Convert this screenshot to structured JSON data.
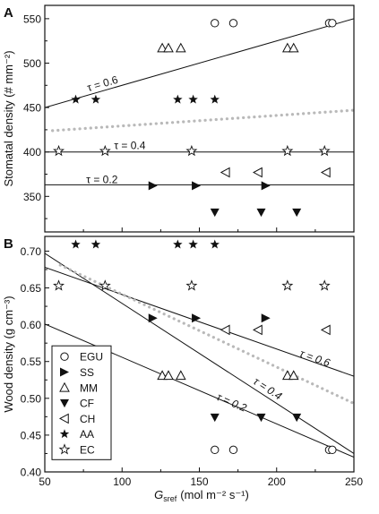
{
  "figure": {
    "x_axis_label": "G",
    "x_axis_subscript": "sref",
    "x_axis_unit": "(mol m⁻² s⁻¹)"
  },
  "chart_data": [
    {
      "panel_letter": "A",
      "type": "scatter",
      "ylabel": "Stomatal density (# mm⁻²)",
      "xlim": [
        50,
        250
      ],
      "ylim": [
        310,
        565
      ],
      "x_ticks": [
        50,
        100,
        150,
        200,
        250
      ],
      "y_ticks": [
        350,
        400,
        450,
        500,
        550
      ],
      "grid": false,
      "series": [
        {
          "name": "EGU",
          "marker": "circle-open",
          "points": [
            [
              160,
              545
            ],
            [
              172,
              545
            ],
            [
              234,
              545
            ],
            [
              236,
              545
            ]
          ]
        },
        {
          "name": "SS",
          "marker": "triangle-right-filled",
          "points": [
            [
              120,
              362
            ],
            [
              148,
              362
            ],
            [
              193,
              362
            ]
          ]
        },
        {
          "name": "MM",
          "marker": "triangle-up-open",
          "points": [
            [
              126,
              517
            ],
            [
              130,
              517
            ],
            [
              138,
              517
            ],
            [
              207,
              517
            ],
            [
              211,
              517
            ]
          ]
        },
        {
          "name": "CF",
          "marker": "triangle-down-filled",
          "points": [
            [
              160,
              332
            ],
            [
              190,
              332
            ],
            [
              213,
              332
            ]
          ]
        },
        {
          "name": "CH",
          "marker": "triangle-left-open",
          "points": [
            [
              167,
              377
            ],
            [
              188,
              377
            ],
            [
              232,
              377
            ]
          ]
        },
        {
          "name": "AA",
          "marker": "star-filled",
          "points": [
            [
              70,
              459
            ],
            [
              83,
              459
            ],
            [
              136,
              459
            ],
            [
              146,
              459
            ],
            [
              160,
              459
            ]
          ]
        },
        {
          "name": "EC",
          "marker": "star-open",
          "points": [
            [
              59,
              401
            ],
            [
              89,
              401
            ],
            [
              145,
              401
            ],
            [
              207,
              401
            ],
            [
              231,
              401
            ]
          ]
        }
      ],
      "fit_lines": [
        {
          "label": "τ = 0.6",
          "style": "solid",
          "x": [
            50,
            250
          ],
          "y": [
            450,
            550
          ]
        },
        {
          "label": "τ = 0.4",
          "style": "solid",
          "x": [
            50,
            250
          ],
          "y": [
            400,
            400
          ]
        },
        {
          "label": "τ = 0.2",
          "style": "solid",
          "x": [
            50,
            250
          ],
          "y": [
            363,
            363
          ]
        },
        {
          "label": "",
          "style": "dotted-gray",
          "x": [
            55,
            250
          ],
          "y": [
            424,
            447
          ]
        }
      ],
      "fit_label_positions": [
        [
          88,
          473
        ],
        [
          105,
          403
        ],
        [
          87,
          365
        ]
      ]
    },
    {
      "panel_letter": "B",
      "type": "scatter",
      "ylabel": "Wood density (g cm⁻³)",
      "xlim": [
        50,
        250
      ],
      "ylim": [
        0.4,
        0.72
      ],
      "x_ticks": [
        50,
        100,
        150,
        200,
        250
      ],
      "y_ticks": [
        0.4,
        0.45,
        0.5,
        0.55,
        0.6,
        0.65,
        0.7
      ],
      "x_tick_labels": [
        "50",
        "100",
        "150",
        "200",
        "250"
      ],
      "y_tick_labels": [
        "0.40",
        "0.45",
        "0.50",
        "0.55",
        "0.60",
        "0.65",
        "0.70"
      ],
      "grid": false,
      "series": [
        {
          "name": "EGU",
          "marker": "circle-open",
          "points": [
            [
              160,
              0.43
            ],
            [
              172,
              0.43
            ],
            [
              234,
              0.43
            ],
            [
              236,
              0.43
            ]
          ]
        },
        {
          "name": "SS",
          "marker": "triangle-right-filled",
          "points": [
            [
              120,
              0.609
            ],
            [
              148,
              0.609
            ],
            [
              193,
              0.609
            ]
          ]
        },
        {
          "name": "MM",
          "marker": "triangle-up-open",
          "points": [
            [
              126,
              0.531
            ],
            [
              130,
              0.531
            ],
            [
              138,
              0.531
            ],
            [
              207,
              0.531
            ],
            [
              211,
              0.531
            ]
          ]
        },
        {
          "name": "CF",
          "marker": "triangle-down-filled",
          "points": [
            [
              160,
              0.474
            ],
            [
              190,
              0.474
            ],
            [
              213,
              0.474
            ]
          ]
        },
        {
          "name": "CH",
          "marker": "triangle-left-open",
          "points": [
            [
              167,
              0.593
            ],
            [
              188,
              0.593
            ],
            [
              232,
              0.593
            ]
          ]
        },
        {
          "name": "AA",
          "marker": "star-filled",
          "points": [
            [
              70,
              0.709
            ],
            [
              83,
              0.709
            ],
            [
              136,
              0.709
            ],
            [
              146,
              0.709
            ],
            [
              160,
              0.709
            ]
          ]
        },
        {
          "name": "EC",
          "marker": "star-open",
          "points": [
            [
              59,
              0.653
            ],
            [
              89,
              0.653
            ],
            [
              145,
              0.653
            ],
            [
              207,
              0.653
            ],
            [
              231,
              0.653
            ]
          ]
        }
      ],
      "fit_lines": [
        {
          "label": "τ = 0.6",
          "style": "solid",
          "x": [
            50,
            250
          ],
          "y": [
            0.678,
            0.53
          ]
        },
        {
          "label": "τ = 0.4",
          "style": "solid",
          "x": [
            50,
            250
          ],
          "y": [
            0.697,
            0.425
          ]
        },
        {
          "label": "τ = 0.2",
          "style": "solid",
          "x": [
            50,
            250
          ],
          "y": [
            0.601,
            0.42
          ]
        },
        {
          "label": "",
          "style": "dotted-gray",
          "x": [
            60,
            250
          ],
          "y": [
            0.681,
            0.493
          ]
        }
      ],
      "fit_label_positions": [
        [
          224,
          0.55
        ],
        [
          193,
          0.509
        ],
        [
          170,
          0.49
        ]
      ],
      "legend_placement": "lower-left",
      "legend_entries": [
        "EGU",
        "SS",
        "MM",
        "CF",
        "CH",
        "AA",
        "EC"
      ]
    }
  ]
}
